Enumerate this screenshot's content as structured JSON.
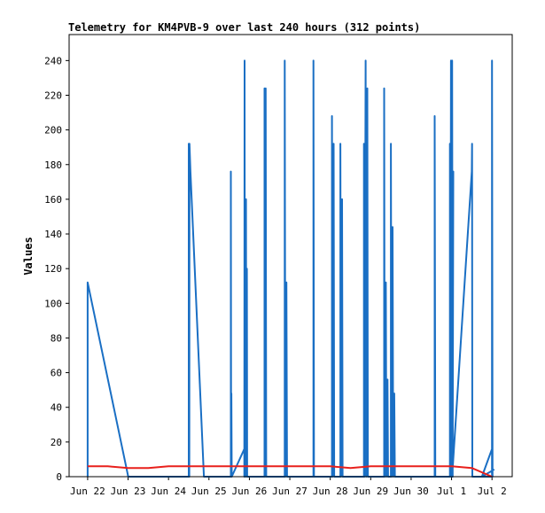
{
  "chart_data": {
    "type": "line",
    "title": "Telemetry for KM4PVB-9 over last 240 hours (312 points)",
    "xlabel": "",
    "ylabel": "Values",
    "x_ticks": [
      "Jun 22",
      "Jun 23",
      "Jun 24",
      "Jun 25",
      "Jun 26",
      "Jun 27",
      "Jun 28",
      "Jun 29",
      "Jun 30",
      "Jul 1",
      "Jul 2"
    ],
    "xlim": [
      "2025-06-21T13:00",
      "2025-07-02T12:00"
    ],
    "ylim": [
      0,
      255
    ],
    "y_ticks": [
      0,
      20,
      40,
      60,
      80,
      100,
      120,
      140,
      160,
      180,
      200,
      220,
      240
    ],
    "grid": false,
    "series": [
      {
        "color": "#1a6fc4",
        "points": [
          [
            "2025-06-22T00:00",
            0
          ],
          [
            "2025-06-22T00:00",
            112
          ],
          [
            "2025-06-23T00:05",
            0
          ],
          [
            "2025-06-24T12:00",
            0
          ],
          [
            "2025-06-24T12:00",
            192
          ],
          [
            "2025-06-24T12:20",
            0
          ],
          [
            "2025-06-24T12:25",
            192
          ],
          [
            "2025-06-24T13:00",
            176
          ],
          [
            "2025-06-24T21:00",
            0
          ],
          [
            "2025-06-25T13:00",
            0
          ],
          [
            "2025-06-25T13:00",
            176
          ],
          [
            "2025-06-25T13:10",
            0
          ],
          [
            "2025-06-25T13:20",
            48
          ],
          [
            "2025-06-25T13:30",
            0
          ],
          [
            "2025-06-25T21:00",
            16
          ],
          [
            "2025-06-25T21:00",
            0
          ],
          [
            "2025-06-25T21:10",
            240
          ],
          [
            "2025-06-25T21:20",
            0
          ],
          [
            "2025-06-25T22:00",
            160
          ],
          [
            "2025-06-25T22:10",
            0
          ],
          [
            "2025-06-25T22:30",
            120
          ],
          [
            "2025-06-25T22:40",
            0
          ],
          [
            "2025-06-26T09:00",
            0
          ],
          [
            "2025-06-26T09:00",
            224
          ],
          [
            "2025-06-26T09:20",
            0
          ],
          [
            "2025-06-26T09:40",
            224
          ],
          [
            "2025-06-26T10:00",
            0
          ],
          [
            "2025-06-26T21:00",
            0
          ],
          [
            "2025-06-26T21:00",
            240
          ],
          [
            "2025-06-26T21:20",
            0
          ],
          [
            "2025-06-26T22:00",
            112
          ],
          [
            "2025-06-26T22:20",
            0
          ],
          [
            "2025-06-27T14:00",
            0
          ],
          [
            "2025-06-27T14:00",
            240
          ],
          [
            "2025-06-27T14:20",
            0
          ],
          [
            "2025-06-28T01:00",
            0
          ],
          [
            "2025-06-28T01:00",
            208
          ],
          [
            "2025-06-28T01:20",
            0
          ],
          [
            "2025-06-28T02:00",
            192
          ],
          [
            "2025-06-28T02:20",
            0
          ],
          [
            "2025-06-28T06:00",
            0
          ],
          [
            "2025-06-28T06:00",
            192
          ],
          [
            "2025-06-28T06:20",
            0
          ],
          [
            "2025-06-28T07:00",
            160
          ],
          [
            "2025-06-28T07:20",
            0
          ],
          [
            "2025-06-28T20:00",
            0
          ],
          [
            "2025-06-28T20:00",
            192
          ],
          [
            "2025-06-28T20:20",
            0
          ],
          [
            "2025-06-28T21:00",
            240
          ],
          [
            "2025-06-28T21:20",
            0
          ],
          [
            "2025-06-28T22:00",
            224
          ],
          [
            "2025-06-28T22:20",
            0
          ],
          [
            "2025-06-29T08:00",
            0
          ],
          [
            "2025-06-29T08:00",
            224
          ],
          [
            "2025-06-29T08:20",
            0
          ],
          [
            "2025-06-29T09:00",
            112
          ],
          [
            "2025-06-29T09:20",
            0
          ],
          [
            "2025-06-29T10:00",
            56
          ],
          [
            "2025-06-29T10:20",
            0
          ],
          [
            "2025-06-29T12:00",
            0
          ],
          [
            "2025-06-29T12:00",
            192
          ],
          [
            "2025-06-29T12:20",
            0
          ],
          [
            "2025-06-29T13:00",
            144
          ],
          [
            "2025-06-29T13:20",
            0
          ],
          [
            "2025-06-29T14:00",
            48
          ],
          [
            "2025-06-29T14:20",
            0
          ],
          [
            "2025-06-30T14:00",
            0
          ],
          [
            "2025-06-30T14:00",
            208
          ],
          [
            "2025-06-30T14:20",
            0
          ],
          [
            "2025-06-30T23:00",
            0
          ],
          [
            "2025-06-30T23:00",
            192
          ],
          [
            "2025-06-30T23:20",
            0
          ],
          [
            "2025-06-30T23:40",
            240
          ],
          [
            "2025-07-01T00:00",
            0
          ],
          [
            "2025-07-01T00:20",
            240
          ],
          [
            "2025-07-01T00:40",
            0
          ],
          [
            "2025-07-01T01:00",
            176
          ],
          [
            "2025-07-01T00:20",
            0
          ],
          [
            "2025-07-01T12:00",
            176
          ],
          [
            "2025-07-01T12:10",
            192
          ],
          [
            "2025-07-01T12:20",
            0
          ],
          [
            "2025-07-02T00:00",
            0
          ],
          [
            "2025-07-02T00:00",
            240
          ],
          [
            "2025-07-02T00:20",
            0
          ],
          [
            "2025-07-02T00:20",
            4
          ],
          [
            "2025-07-02T01:00",
            4
          ],
          [
            "2025-07-01T18:00",
            0
          ],
          [
            "2025-07-02T00:00",
            16
          ]
        ]
      },
      {
        "color": "#e8201c",
        "points": [
          [
            "2025-06-22T00:00",
            6
          ],
          [
            "2025-06-22T12:00",
            6
          ],
          [
            "2025-06-23T00:00",
            5
          ],
          [
            "2025-06-23T12:00",
            5
          ],
          [
            "2025-06-24T00:00",
            6
          ],
          [
            "2025-06-24T12:00",
            6
          ],
          [
            "2025-06-25T00:00",
            6
          ],
          [
            "2025-06-25T12:00",
            6
          ],
          [
            "2025-06-26T00:00",
            6
          ],
          [
            "2025-06-26T12:00",
            6
          ],
          [
            "2025-06-27T00:00",
            6
          ],
          [
            "2025-06-27T12:00",
            6
          ],
          [
            "2025-06-28T00:00",
            6
          ],
          [
            "2025-06-28T12:00",
            5
          ],
          [
            "2025-06-29T00:00",
            6
          ],
          [
            "2025-06-29T12:00",
            6
          ],
          [
            "2025-06-30T00:00",
            6
          ],
          [
            "2025-06-30T12:00",
            6
          ],
          [
            "2025-07-01T00:00",
            6
          ],
          [
            "2025-07-01T12:00",
            5
          ],
          [
            "2025-07-02T00:00",
            0
          ]
        ]
      }
    ]
  }
}
